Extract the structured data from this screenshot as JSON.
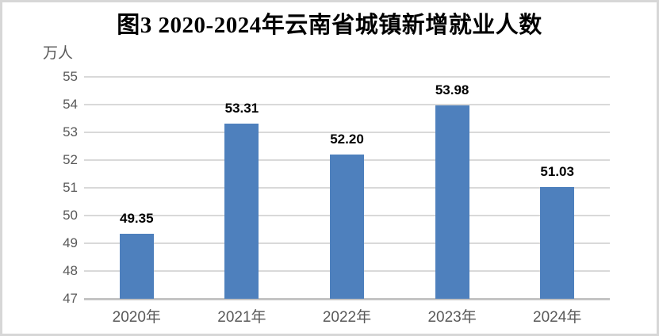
{
  "chart_data": {
    "type": "bar",
    "title": "图3  2020-2024年云南省城镇新增就业人数",
    "unit_label": "万人",
    "categories": [
      "2020年",
      "2021年",
      "2022年",
      "2023年",
      "2024年"
    ],
    "values": [
      49.35,
      53.31,
      52.2,
      53.98,
      51.03
    ],
    "value_labels": [
      "49.35",
      "53.31",
      "52.20",
      "53.98",
      "51.03"
    ],
    "ytick_labels": [
      "47",
      "48",
      "49",
      "50",
      "51",
      "52",
      "53",
      "54",
      "55"
    ],
    "ylim": [
      47,
      55
    ],
    "ytick_step": 1,
    "xlabel": "",
    "ylabel": "万人",
    "grid": true,
    "legend_position": "none",
    "bar_color": "#4e80bd",
    "grid_color": "#d9d9d9",
    "axis_line_color": "#c4c4c4",
    "tick_label_color": "#595959",
    "title_color": "#000000",
    "frame_border_color": "#d7d7d7"
  }
}
